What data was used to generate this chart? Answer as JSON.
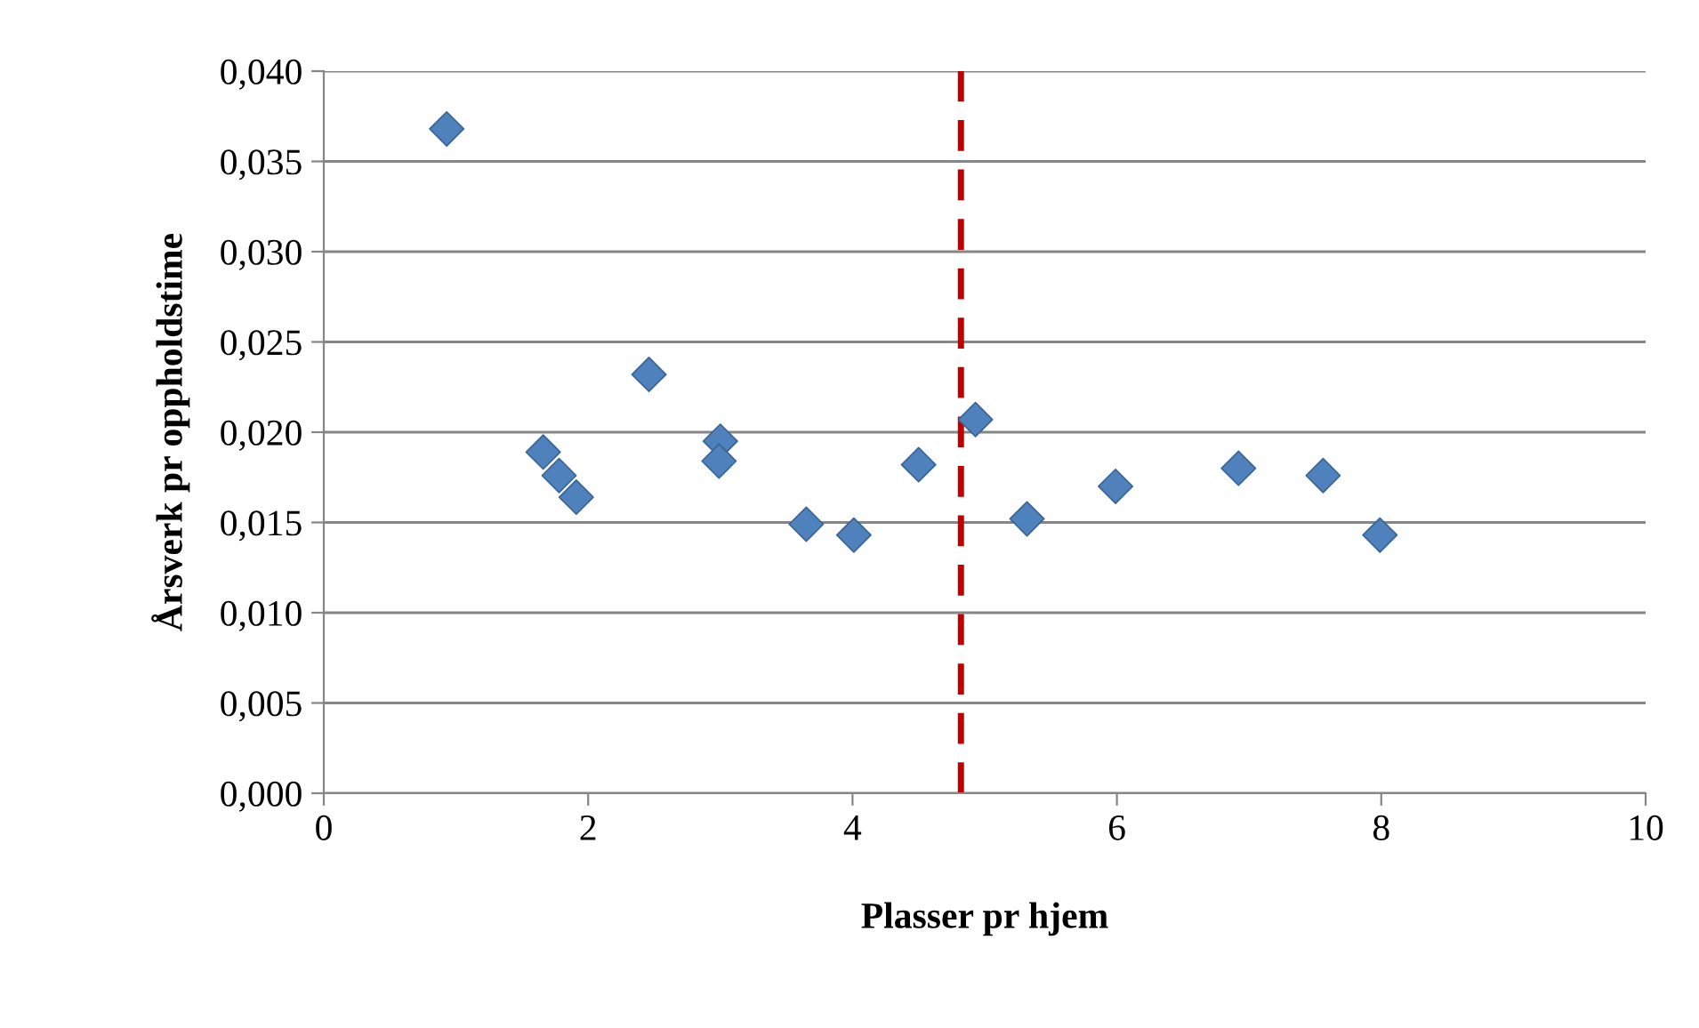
{
  "chart_data": {
    "type": "scatter",
    "xlabel": "Plasser pr hjem",
    "ylabel": "Årsverk pr oppholdstime",
    "x": [
      0.93,
      1.66,
      1.78,
      1.91,
      2.46,
      3.0,
      2.99,
      3.65,
      4.01,
      4.5,
      4.93,
      5.32,
      5.99,
      6.92,
      7.56,
      7.99
    ],
    "series": [
      {
        "color": "#4f81bd",
        "values": [
          0.0368,
          0.0189,
          0.0176,
          0.0164,
          0.0232,
          0.0195,
          0.0184,
          0.0149,
          0.0143,
          0.0182,
          0.0207,
          0.0152,
          0.017,
          0.018,
          0.0176,
          0.0143
        ]
      }
    ],
    "marker": "diamond",
    "grid": "y",
    "legend": false,
    "xlim": [
      0,
      10
    ],
    "xticks": [
      0,
      2,
      4,
      6,
      8,
      10
    ],
    "ylim": [
      0,
      0.04
    ],
    "yticks": [
      {
        "value": 0,
        "label": "0,000"
      },
      {
        "value": 0.005,
        "label": "0,005"
      },
      {
        "value": 0.01,
        "label": "0,010"
      },
      {
        "value": 0.015,
        "label": "0,015"
      },
      {
        "value": 0.02,
        "label": "0,020"
      },
      {
        "value": 0.025,
        "label": "0,025"
      },
      {
        "value": 0.03,
        "label": "0,030"
      },
      {
        "value": 0.035,
        "label": "0,035"
      },
      {
        "value": 0.04,
        "label": "0,040"
      }
    ],
    "ref_lines": [
      {
        "axis": "x",
        "value": 4.82,
        "color": "#c00000",
        "line_style": "dashed"
      }
    ]
  }
}
